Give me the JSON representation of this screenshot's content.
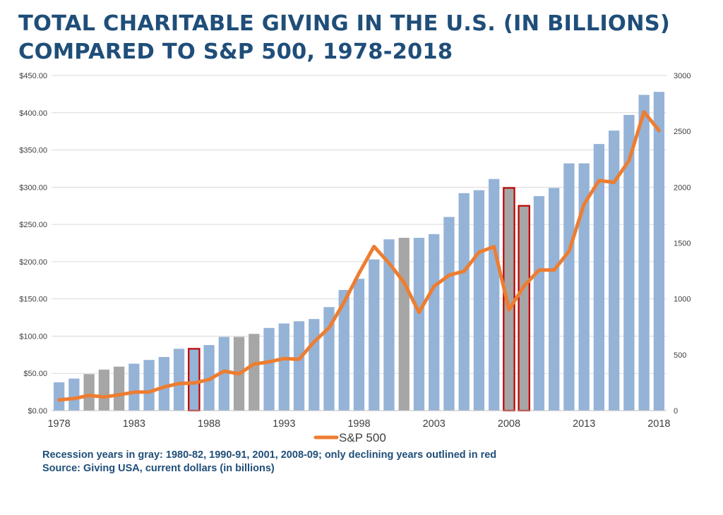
{
  "title_line1": "TOTAL CHARITABLE GIVING IN THE U.S. (IN BILLIONS)",
  "title_line2": "COMPARED TO S&P 500, 1978-2018",
  "footer_line1": "Recession years in gray: 1980-82, 1990-91, 2001, 2008-09; only declining years outlined in red",
  "footer_line2": "Source: Giving USA, current dollars (in billions)",
  "colors": {
    "bar": "#95b3d7",
    "recession_bar": "#a6a6a6",
    "decline_outline": "#c00000",
    "sp500_line": "#ed7d31",
    "grid": "#d9d9d9",
    "title": "#1f4e79"
  },
  "chart_data": {
    "type": "bar",
    "x": [
      1978,
      1979,
      1980,
      1981,
      1982,
      1983,
      1984,
      1985,
      1986,
      1987,
      1988,
      1989,
      1990,
      1991,
      1992,
      1993,
      1994,
      1995,
      1996,
      1997,
      1998,
      1999,
      2000,
      2001,
      2002,
      2003,
      2004,
      2005,
      2006,
      2007,
      2008,
      2009,
      2010,
      2011,
      2012,
      2013,
      2014,
      2015,
      2016,
      2017,
      2018
    ],
    "x_tick_labels": [
      "1978",
      "1983",
      "1988",
      "1993",
      "1998",
      "2003",
      "2008",
      "2013",
      "2018"
    ],
    "series": [
      {
        "kind": "bar",
        "axis": "left",
        "values": [
          38,
          43,
          49,
          55,
          59,
          63,
          68,
          72,
          83,
          83,
          88,
          99,
          99,
          103,
          111,
          117,
          120,
          123,
          139,
          162,
          177,
          203,
          230,
          232,
          232,
          237,
          260,
          292,
          296,
          311,
          299,
          275,
          288,
          299,
          332,
          332,
          358,
          376,
          397,
          424,
          428
        ],
        "recession_years": [
          1980,
          1981,
          1982,
          1990,
          1991,
          2001,
          2008,
          2009
        ],
        "declining_years_outlined": [
          1987,
          2008,
          2009
        ]
      },
      {
        "kind": "line",
        "name": "S&P 500",
        "axis": "right",
        "values": [
          96,
          108,
          136,
          122,
          141,
          165,
          167,
          211,
          242,
          247,
          278,
          353,
          330,
          417,
          436,
          466,
          459,
          615,
          741,
          970,
          1229,
          1469,
          1320,
          1148,
          880,
          1112,
          1212,
          1248,
          1418,
          1468,
          903,
          1115,
          1258,
          1258,
          1426,
          1848,
          2059,
          2044,
          2239,
          2674,
          2507
        ]
      }
    ],
    "y_left": {
      "min": 0,
      "max": 450,
      "step": 50,
      "tick_labels": [
        "$0.00",
        "$50.00",
        "$100.00",
        "$150.00",
        "$200.00",
        "$250.00",
        "$300.00",
        "$350.00",
        "$400.00",
        "$450.00"
      ]
    },
    "y_right": {
      "min": 0,
      "max": 3000,
      "step": 500,
      "tick_labels": [
        "0",
        "500",
        "1000",
        "1500",
        "2000",
        "2500",
        "3000"
      ]
    },
    "grid": true,
    "legend": {
      "position": "bottom-center"
    }
  }
}
